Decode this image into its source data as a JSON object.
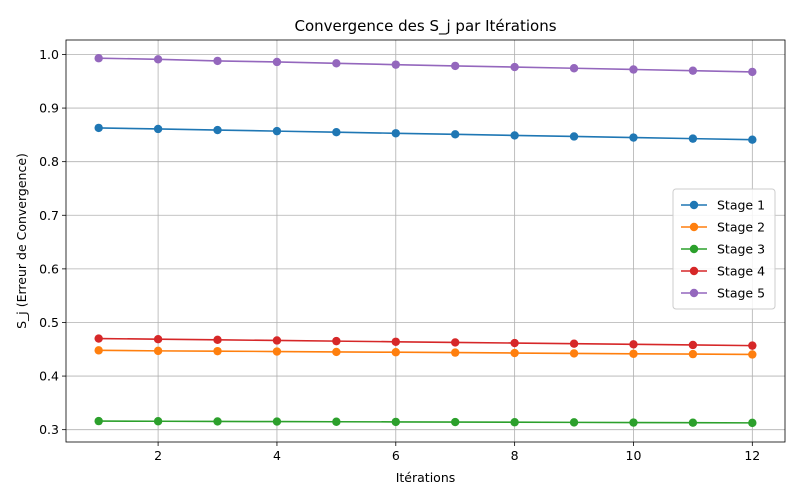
{
  "chart_data": {
    "type": "line",
    "title": "Convergence des S_j par Itérations",
    "xlabel": "Itérations",
    "ylabel": "S_j (Erreur de Convergence)",
    "x": [
      1,
      2,
      3,
      4,
      5,
      6,
      7,
      8,
      9,
      10,
      11,
      12
    ],
    "xlim": [
      0.45,
      12.55
    ],
    "ylim": [
      0.277,
      1.027
    ],
    "xticks": [
      2,
      4,
      6,
      8,
      10,
      12
    ],
    "yticks": [
      0.3,
      0.4,
      0.5,
      0.6,
      0.7,
      0.8,
      0.9,
      1.0
    ],
    "ytick_labels": [
      "0.3",
      "0.4",
      "0.5",
      "0.6",
      "0.7",
      "0.8",
      "0.9",
      "1.0"
    ],
    "grid": true,
    "legend_position": "center-right",
    "marker": "circle",
    "series": [
      {
        "name": "Stage 1",
        "color": "#1f77b4",
        "values": [
          0.863,
          0.861,
          0.859,
          0.857,
          0.855,
          0.853,
          0.851,
          0.849,
          0.847,
          0.845,
          0.843,
          0.841
        ]
      },
      {
        "name": "Stage 2",
        "color": "#ff7f0e",
        "values": [
          0.448,
          0.447,
          0.4465,
          0.4458,
          0.445,
          0.4445,
          0.4438,
          0.443,
          0.4423,
          0.4416,
          0.441,
          0.4403
        ]
      },
      {
        "name": "Stage 3",
        "color": "#2ca02c",
        "values": [
          0.316,
          0.3157,
          0.3154,
          0.3151,
          0.3148,
          0.3145,
          0.3142,
          0.3139,
          0.3136,
          0.3133,
          0.313,
          0.3127
        ]
      },
      {
        "name": "Stage 4",
        "color": "#d62728",
        "values": [
          0.47,
          0.4688,
          0.4676,
          0.4664,
          0.4652,
          0.464,
          0.4628,
          0.4616,
          0.4604,
          0.4592,
          0.458,
          0.4568
        ]
      },
      {
        "name": "Stage 5",
        "color": "#9467bd",
        "values": [
          0.993,
          0.991,
          0.988,
          0.986,
          0.9835,
          0.981,
          0.9787,
          0.9765,
          0.9743,
          0.972,
          0.9698,
          0.9675
        ]
      }
    ]
  }
}
